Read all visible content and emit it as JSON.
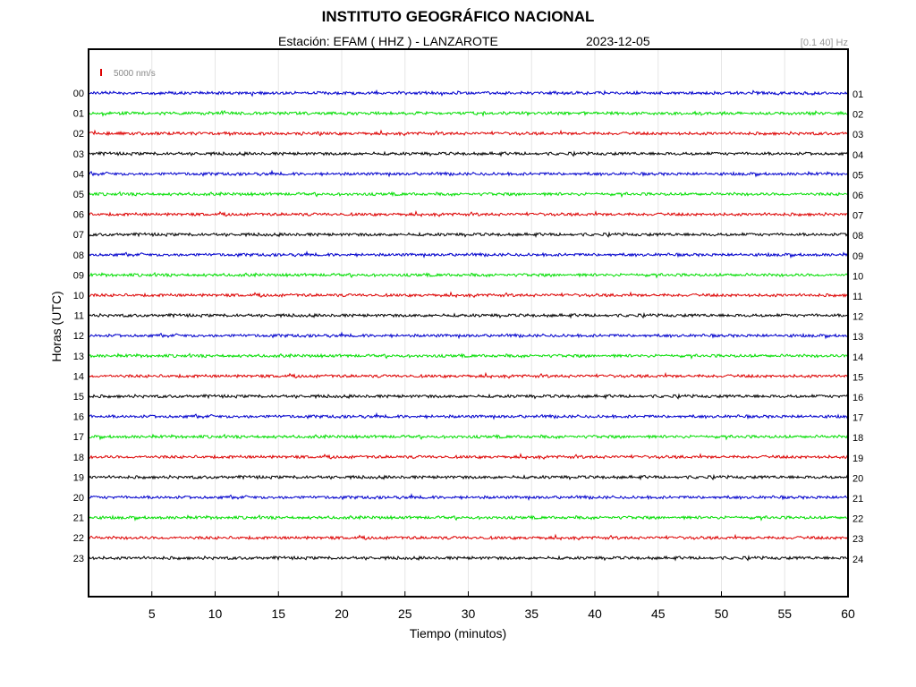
{
  "header": {
    "title": "INSTITUTO GEOGRÁFICO NACIONAL",
    "station": "Estación:  EFAM ( HHZ ) - LANZAROTE",
    "date": "2023-12-05",
    "filter": "[0.1 40] Hz"
  },
  "chart_data": {
    "type": "line",
    "title": "INSTITUTO GEOGRÁFICO NACIONAL",
    "xlabel": "Tiempo (minutos)",
    "ylabel": "Horas (UTC)",
    "xlim": [
      0,
      60
    ],
    "x_ticks": [
      "5",
      "10",
      "15",
      "20",
      "25",
      "30",
      "35",
      "40",
      "45",
      "50",
      "55",
      "60"
    ],
    "hours_left": [
      "00",
      "01",
      "02",
      "03",
      "04",
      "05",
      "06",
      "07",
      "08",
      "09",
      "10",
      "11",
      "12",
      "13",
      "14",
      "15",
      "16",
      "17",
      "18",
      "19",
      "20",
      "21",
      "22",
      "23"
    ],
    "hours_right": [
      "01",
      "02",
      "03",
      "04",
      "05",
      "06",
      "07",
      "08",
      "09",
      "10",
      "11",
      "12",
      "13",
      "14",
      "15",
      "16",
      "17",
      "18",
      "19",
      "20",
      "21",
      "22",
      "23",
      "24"
    ],
    "trace_colors": [
      "#0000cc",
      "#00dd00",
      "#dd0000",
      "#000000"
    ],
    "scale_label": "5000 nm/s",
    "scale_color": "#dd0000",
    "grid": true
  }
}
